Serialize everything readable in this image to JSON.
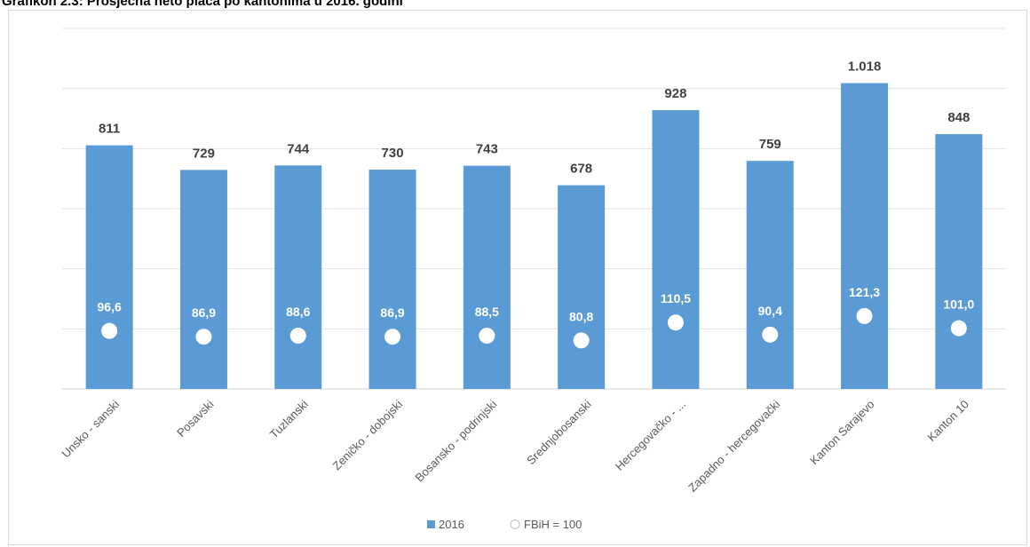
{
  "chart_data": {
    "type": "bar",
    "title": "Grafikon 2.3: Prosječna neto plaća po kantonima u 2016. godini",
    "categories": [
      "Unsko - sanski",
      "Posavski",
      "Tuzlanski",
      "Zeničko - dobojski",
      "Bosansko - podrinjski",
      "Srednjobosanski",
      "Hercegovačko - ...",
      "Zapadno - hercegovački",
      "Kanton Sarajevo",
      "Kanton 10"
    ],
    "series": [
      {
        "name": "2016",
        "values": [
          811,
          729,
          744,
          730,
          743,
          678,
          928,
          759,
          1018,
          848
        ],
        "labels": [
          "811",
          "729",
          "744",
          "730",
          "743",
          "678",
          "928",
          "759",
          "1.018",
          "848"
        ],
        "color": "#5b9bd5"
      },
      {
        "name": "FBiH = 100",
        "values": [
          96.6,
          86.9,
          88.6,
          86.9,
          88.5,
          80.8,
          110.5,
          90.4,
          121.3,
          101.0
        ],
        "labels": [
          "96,6",
          "86,9",
          "88,6",
          "86,9",
          "88,5",
          "80,8",
          "110,5",
          "90,4",
          "121,3",
          "101,0"
        ],
        "marker": "circle",
        "color": "#ffffff"
      }
    ],
    "ylim": [
      0,
      1200
    ],
    "secondary_ylim": [
      0,
      600
    ],
    "grid": true,
    "legend": "bottom-center",
    "xlabel": "",
    "ylabel": ""
  }
}
